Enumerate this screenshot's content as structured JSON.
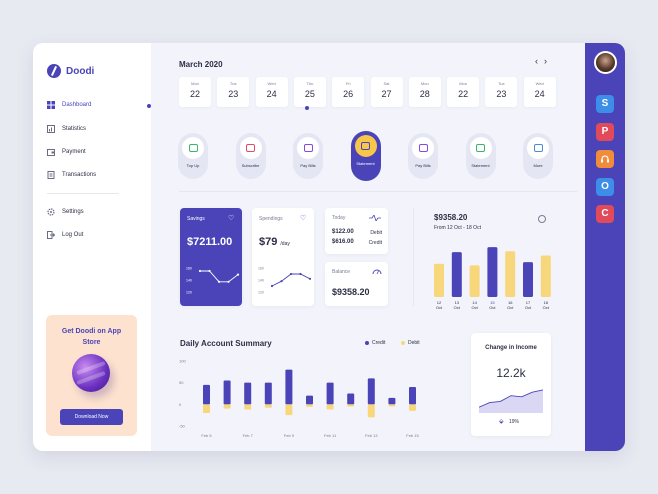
{
  "brand": {
    "name": "Doodi"
  },
  "nav": [
    {
      "label": "Dashboard",
      "icon": "grid-icon",
      "active": true
    },
    {
      "label": "Statistics",
      "icon": "chart-icon"
    },
    {
      "label": "Payment",
      "icon": "wallet-icon"
    },
    {
      "label": "Transactions",
      "icon": "receipt-icon"
    }
  ],
  "nav2": [
    {
      "label": "Settings",
      "icon": "gear-icon"
    },
    {
      "label": "Log Out",
      "icon": "logout-icon"
    }
  ],
  "promo": {
    "title": "Get Doodi on App Store",
    "button": "Download Now"
  },
  "calendar": {
    "month": "March 2020",
    "prev": "‹",
    "next": "›",
    "days": [
      {
        "name": "Mon",
        "date": "22"
      },
      {
        "name": "Tue",
        "date": "23"
      },
      {
        "name": "Wed",
        "date": "24"
      },
      {
        "name": "Thu",
        "date": "25",
        "selected": true
      },
      {
        "name": "Fri",
        "date": "26"
      },
      {
        "name": "Sat",
        "date": "27"
      },
      {
        "name": "Mon",
        "date": "28"
      },
      {
        "name": "Mon",
        "date": "22"
      },
      {
        "name": "Tue",
        "date": "23"
      },
      {
        "name": "Wed",
        "date": "24"
      }
    ]
  },
  "actions": [
    {
      "label": "Top Up",
      "color": "#3cb371"
    },
    {
      "label": "Subscribe",
      "color": "#e04a6b"
    },
    {
      "label": "Pay Bills",
      "color": "#8a4ad8"
    },
    {
      "label": "Statement",
      "color": "#4a44b8",
      "selected": true
    },
    {
      "label": "Pay Bills",
      "color": "#8a4ad8"
    },
    {
      "label": "Statement",
      "color": "#3cb371"
    },
    {
      "label": "More",
      "color": "#4a8ad8"
    }
  ],
  "savings": {
    "title": "Savings",
    "value": "$7211.00",
    "yticks": [
      "160",
      "140",
      "120"
    ],
    "points": [
      155,
      155,
      137,
      137,
      149
    ]
  },
  "spendings": {
    "title": "Spendings",
    "value": "$79",
    "unit": "/day",
    "yticks": [
      "160",
      "140",
      "120"
    ],
    "points": [
      130,
      138,
      150,
      150,
      142
    ]
  },
  "today": {
    "title": "Today",
    "rows": [
      {
        "amount": "$122.00",
        "label": "Debit"
      },
      {
        "amount": "$616.00",
        "label": "Credit"
      }
    ]
  },
  "balance": {
    "title": "Balance",
    "value": "$9358.20"
  },
  "total": {
    "value": "$9358.20",
    "range": "From 12 Oct - 18 Oct",
    "chart_data": {
      "type": "bar",
      "categories": [
        "12 Oct",
        "13 Oct",
        "14 Oct",
        "15 Oct",
        "16 Oct",
        "17 Oct",
        "18 Oct"
      ],
      "values": [
        40,
        54,
        38,
        60,
        55,
        42,
        50
      ],
      "colors": [
        "#f8d77c",
        "#4a44b8",
        "#f8d77c",
        "#4a44b8",
        "#f8d77c",
        "#4a44b8",
        "#f8d77c"
      ],
      "highlight": "15 Oct"
    }
  },
  "daily": {
    "title": "Daily Account Summary",
    "legend": {
      "credit": "Credit",
      "debit": "Debit"
    },
    "colors": {
      "credit": "#4a44b8",
      "debit": "#f8d77c"
    },
    "chart_data": {
      "type": "bar",
      "ylim": [
        -50,
        100
      ],
      "yticks": [
        "100",
        "50",
        "0",
        "-50"
      ],
      "x_labels": [
        "Feb 5",
        "Feb 7",
        "Feb 9",
        "Feb 11",
        "Feb 13",
        "Feb 15"
      ],
      "series": [
        {
          "name": "Credit",
          "values": [
            45,
            55,
            50,
            50,
            80,
            20,
            50,
            25,
            60,
            15,
            40
          ]
        },
        {
          "name": "Debit",
          "values": [
            -20,
            -10,
            -12,
            -8,
            -25,
            -6,
            -12,
            -5,
            -30,
            -5,
            -15
          ]
        }
      ]
    }
  },
  "change": {
    "title": "Change in Income",
    "value": "12.2k",
    "percent": "19%",
    "points": [
      10,
      18,
      20,
      30,
      28,
      36,
      40
    ]
  },
  "rail": {
    "apps": [
      {
        "letter": "S",
        "color": "#3d8ee8"
      },
      {
        "letter": "P",
        "color": "#e04a5a"
      },
      {
        "letter": "",
        "icon": "headset-icon",
        "color": "#f08c3a"
      },
      {
        "letter": "O",
        "color": "#3d8ee8"
      },
      {
        "letter": "C",
        "color": "#e04a5a"
      }
    ]
  }
}
